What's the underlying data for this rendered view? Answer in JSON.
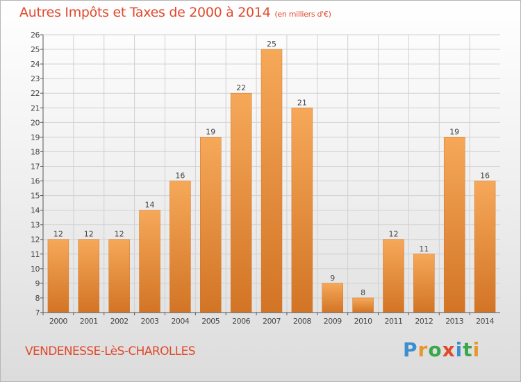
{
  "title": "Autres Impôts et Taxes de 2000 à 2014",
  "title_unit": "(en milliers d'€)",
  "location": "VENDENESSE-LèS-CHAROLLES",
  "brand": {
    "letters": [
      "P",
      "r",
      "o",
      "x",
      "i",
      "t",
      "i"
    ],
    "colors": [
      "#3b8fd0",
      "#e8972a",
      "#3aa84a",
      "#e0492d",
      "#3b8fd0",
      "#3aa84a",
      "#e8972a"
    ]
  },
  "colors": {
    "title": "#e0492d",
    "bar_light": "#f6a859",
    "bar_dark": "#d27425",
    "grid": "#d0d0d0",
    "axis": "#555555",
    "text": "#444444"
  },
  "chart_data": {
    "type": "bar",
    "categories": [
      "2000",
      "2001",
      "2002",
      "2003",
      "2004",
      "2005",
      "2006",
      "2007",
      "2008",
      "2009",
      "2010",
      "2011",
      "2012",
      "2013",
      "2014"
    ],
    "values": [
      12,
      12,
      12,
      14,
      16,
      19,
      22,
      25,
      21,
      9,
      8,
      12,
      11,
      19,
      16
    ],
    "title": "Autres Impôts et Taxes de 2000 à 2014",
    "xlabel": "",
    "ylabel": "",
    "ylim": [
      7,
      26
    ],
    "yticks": [
      7,
      8,
      9,
      10,
      11,
      12,
      13,
      14,
      15,
      16,
      17,
      18,
      19,
      20,
      21,
      22,
      23,
      24,
      25,
      26
    ],
    "grid": true,
    "legend": "none"
  }
}
